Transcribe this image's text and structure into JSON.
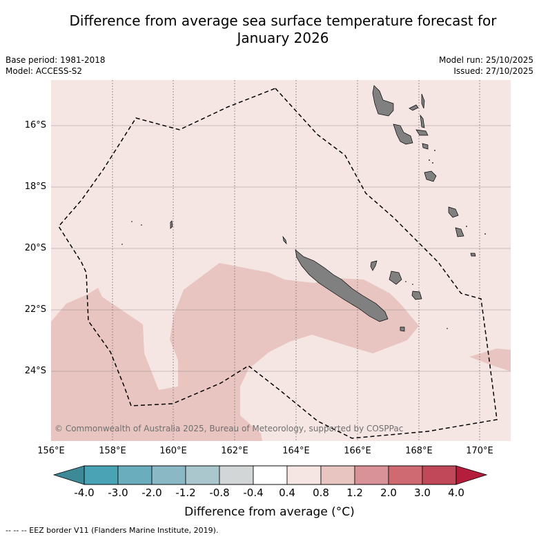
{
  "title_line1": "Difference from average sea surface temperature forecast for",
  "title_line2": "January 2026",
  "base_period": "Base period: 1981-2018",
  "model": "Model: ACCESS-S2",
  "model_run": "Model run: 25/10/2025",
  "issued": "Issued: 27/10/2025",
  "lat_labels": [
    "16°S",
    "18°S",
    "20°S",
    "22°S",
    "24°S"
  ],
  "lon_labels": [
    "156°E",
    "158°E",
    "160°E",
    "162°E",
    "164°E",
    "166°E",
    "168°E",
    "170°E"
  ],
  "copyright": "© Commonwealth of Australia 2025, Bureau of Meteorology, supported by COSPPac",
  "colorbar": {
    "ticks": [
      "-4.0",
      "-3.0",
      "-2.0",
      "-1.2",
      "-0.8",
      "-0.4",
      "0.4",
      "0.8",
      "1.2",
      "2.0",
      "3.0",
      "4.0"
    ],
    "colors": [
      "#4aa3b4",
      "#6aadbc",
      "#8ab8c4",
      "#a9c7cc",
      "#d2d6d6",
      "#ffffff",
      "#f5e6e4",
      "#e8c5c0",
      "#d99297",
      "#cf6a72",
      "#c04858"
    ],
    "low_color": "#3e8997",
    "high_color": "#b41e3c",
    "title": "Difference from average (°C)"
  },
  "legend_footnote": "-- -- -- EEZ border V11 (Flanders Marine Institute, 2019)."
}
